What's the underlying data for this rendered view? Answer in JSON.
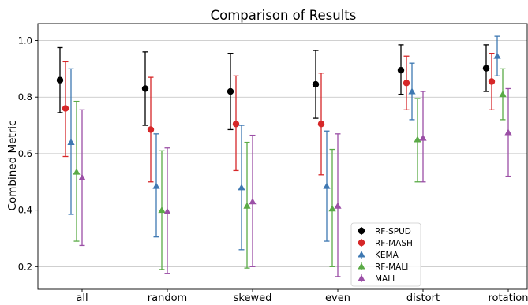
{
  "chart_data": {
    "type": "scatter",
    "title": "Comparison of Results",
    "xlabel": "",
    "ylabel": "Combined Metric",
    "categories": [
      "all",
      "random",
      "skewed",
      "even",
      "distort",
      "rotation"
    ],
    "ylim": [
      0.12,
      1.06
    ],
    "yticks": [
      "0.2",
      "0.4",
      "0.6",
      "0.8",
      "1.0"
    ],
    "grid": "horizontal",
    "legend_position": "lower-right",
    "series": [
      {
        "name": "RF-SPUD",
        "color": "#000000",
        "marker": "circle",
        "values": [
          0.86,
          0.83,
          0.82,
          0.845,
          0.895,
          0.902
        ],
        "lower": [
          0.745,
          0.7,
          0.685,
          0.725,
          0.81,
          0.82
        ],
        "upper": [
          0.975,
          0.96,
          0.955,
          0.965,
          0.985,
          0.985
        ]
      },
      {
        "name": "RF-MASH",
        "color": "#d62728",
        "marker": "circle",
        "values": [
          0.76,
          0.685,
          0.705,
          0.705,
          0.85,
          0.855
        ],
        "lower": [
          0.59,
          0.5,
          0.54,
          0.525,
          0.755,
          0.755
        ],
        "upper": [
          0.925,
          0.87,
          0.875,
          0.885,
          0.945,
          0.955
        ]
      },
      {
        "name": "KEMA",
        "color": "#3e78b2",
        "marker": "triangle",
        "values": [
          0.64,
          0.485,
          0.48,
          0.485,
          0.82,
          0.945
        ],
        "lower": [
          0.385,
          0.305,
          0.26,
          0.29,
          0.72,
          0.875
        ],
        "upper": [
          0.9,
          0.67,
          0.7,
          0.68,
          0.92,
          1.015
        ]
      },
      {
        "name": "RF-MALI",
        "color": "#5aaa46",
        "marker": "triangle",
        "values": [
          0.535,
          0.4,
          0.415,
          0.405,
          0.65,
          0.81
        ],
        "lower": [
          0.29,
          0.19,
          0.195,
          0.2,
          0.5,
          0.72
        ],
        "upper": [
          0.785,
          0.61,
          0.64,
          0.615,
          0.795,
          0.9
        ]
      },
      {
        "name": "MALI",
        "color": "#9b4fa6",
        "marker": "triangle",
        "values": [
          0.515,
          0.395,
          0.43,
          0.415,
          0.655,
          0.675
        ],
        "lower": [
          0.275,
          0.175,
          0.2,
          0.165,
          0.5,
          0.52
        ],
        "upper": [
          0.755,
          0.62,
          0.665,
          0.67,
          0.82,
          0.83
        ]
      }
    ]
  }
}
